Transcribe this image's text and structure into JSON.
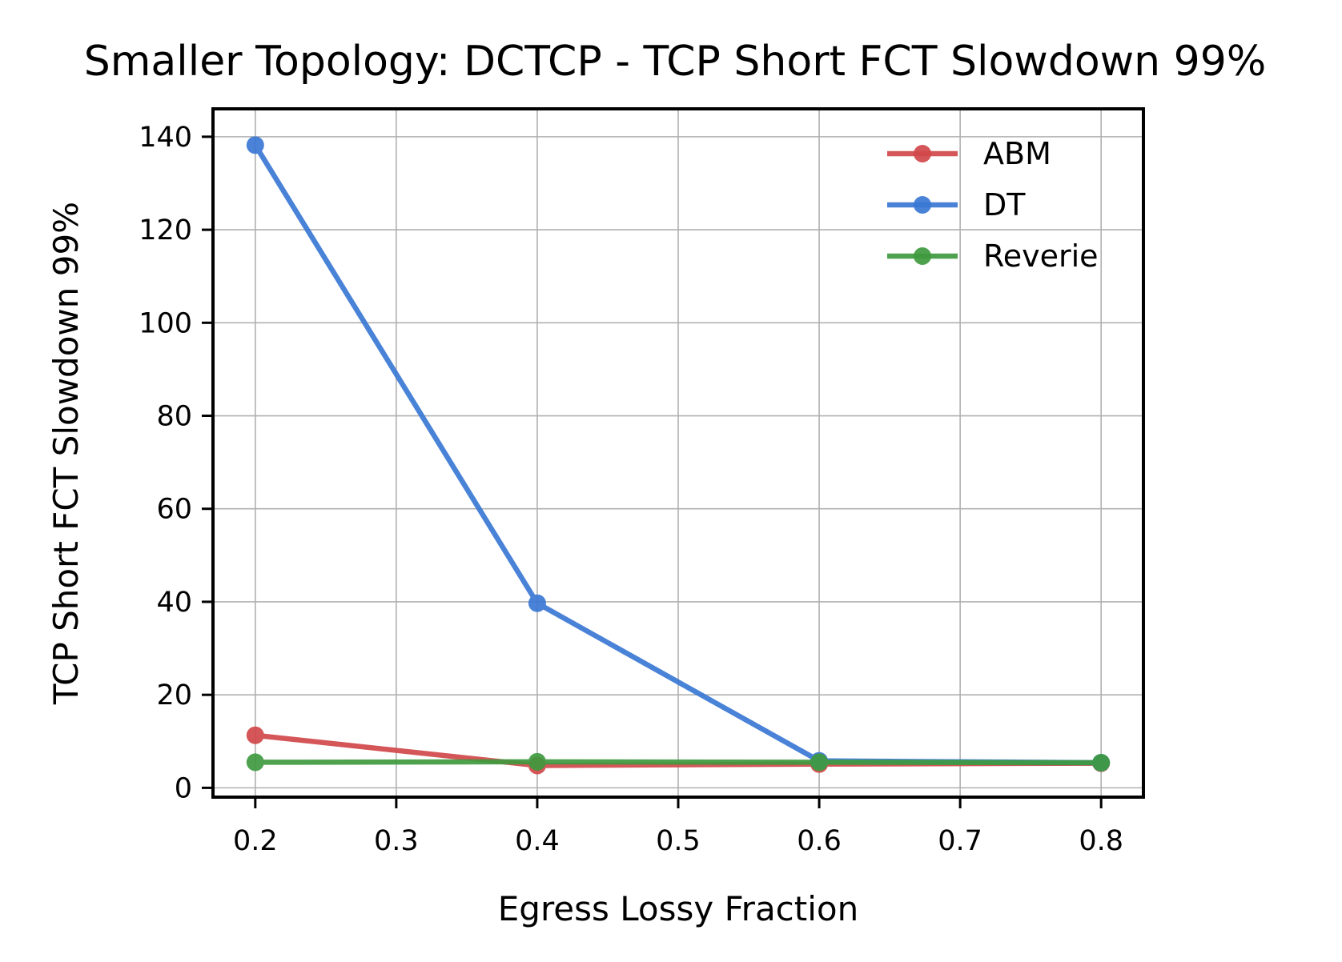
{
  "chart_data": {
    "type": "line",
    "title": "Smaller Topology: DCTCP - TCP Short FCT Slowdown 99%",
    "xlabel": "Egress Lossy Fraction",
    "ylabel": "TCP Short FCT Slowdown 99%",
    "xlim": [
      0.17,
      0.83
    ],
    "ylim": [
      -2,
      146
    ],
    "xticks": [
      0.2,
      0.3,
      0.4,
      0.5,
      0.6,
      0.7,
      0.8
    ],
    "xtick_labels": [
      "0.2",
      "0.3",
      "0.4",
      "0.5",
      "0.6",
      "0.7",
      "0.8"
    ],
    "yticks": [
      0,
      20,
      40,
      60,
      80,
      100,
      120,
      140
    ],
    "ytick_labels": [
      "0",
      "20",
      "40",
      "60",
      "80",
      "100",
      "120",
      "140"
    ],
    "grid": true,
    "legend_position": "top-right",
    "x": [
      0.2,
      0.4,
      0.6,
      0.8
    ],
    "series": [
      {
        "name": "ABM",
        "color": "#d1484a",
        "values": [
          11.3,
          4.8,
          5.1,
          5.3
        ]
      },
      {
        "name": "DT",
        "color": "#3a78d4",
        "values": [
          138.2,
          39.7,
          5.8,
          5.4
        ]
      },
      {
        "name": "Reverie",
        "color": "#3f9a3f",
        "values": [
          5.5,
          5.6,
          5.5,
          5.4
        ]
      }
    ]
  }
}
